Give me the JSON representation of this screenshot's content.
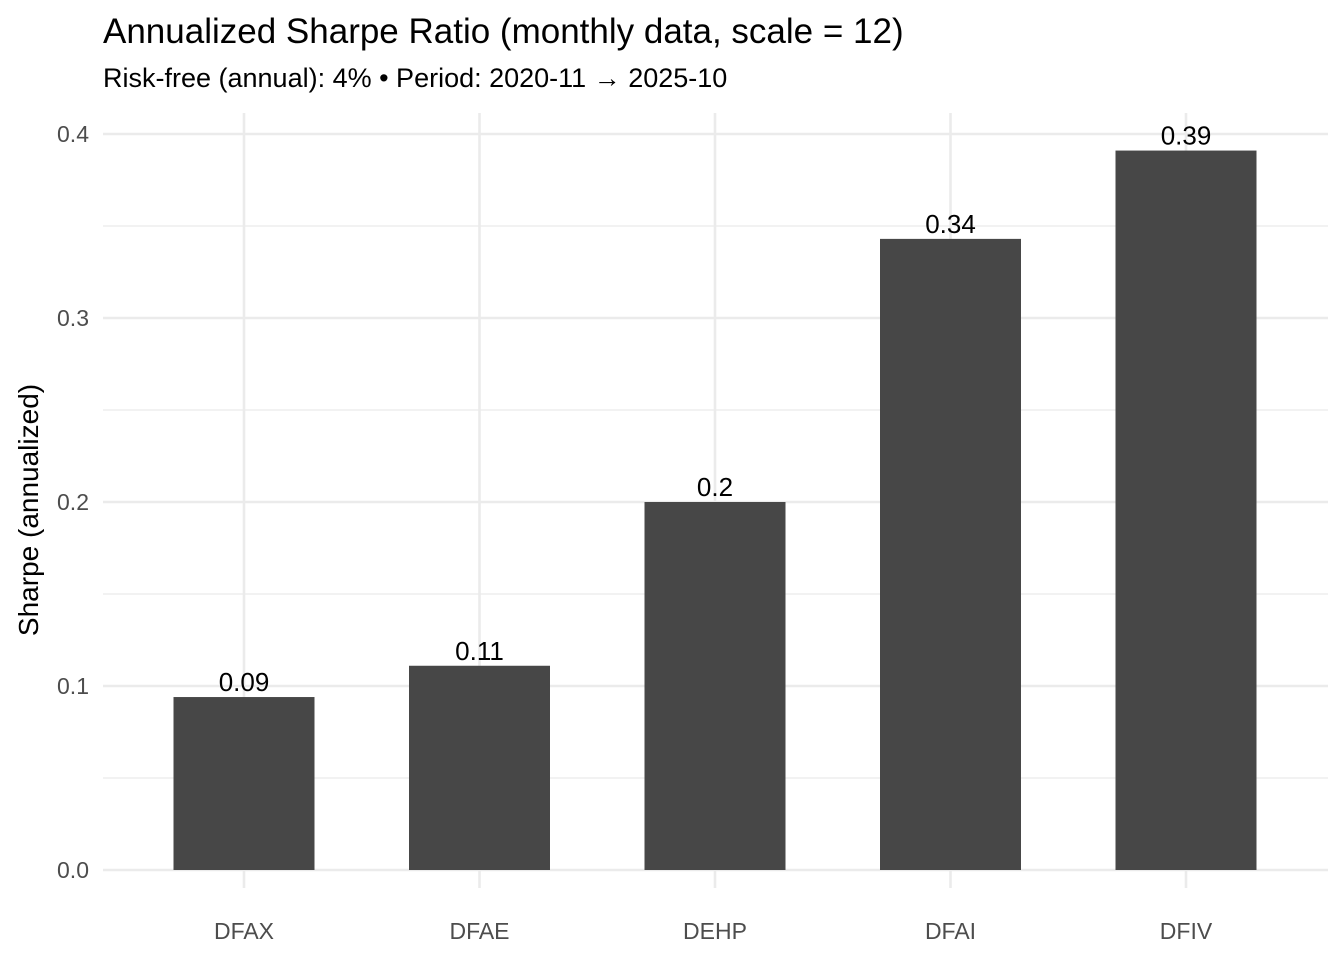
{
  "chart_data": {
    "type": "bar",
    "title": "Annualized Sharpe Ratio (monthly data, scale = 12)",
    "subtitle": "Risk-free (annual): 4% • Period: 2020-11 → 2025-10",
    "xlabel": "",
    "ylabel": "Sharpe (annualized)",
    "categories": [
      "DFAX",
      "DFAE",
      "DEHP",
      "DFAI",
      "DFIV"
    ],
    "values": [
      0.094,
      0.111,
      0.2,
      0.343,
      0.391
    ],
    "data_labels": [
      "0.09",
      "0.11",
      "0.2",
      "0.34",
      "0.39"
    ],
    "ylim": [
      0,
      0.4
    ],
    "yticks": [
      0.0,
      0.1,
      0.2,
      0.3,
      0.4
    ],
    "ytick_labels": [
      "0.0",
      "0.1",
      "0.2",
      "0.3",
      "0.4"
    ],
    "grid": true,
    "legend": "none",
    "colors": {
      "bar": "#474747",
      "grid": "#ebebeb",
      "tick_text": "#4d4d4d"
    }
  }
}
